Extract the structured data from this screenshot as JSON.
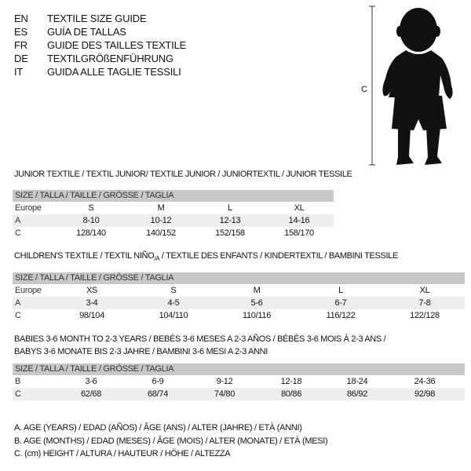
{
  "languages": [
    {
      "code": "EN",
      "title": "TEXTILE SIZE GUIDE"
    },
    {
      "code": "ES",
      "title": "GUÍA DE TALLAS"
    },
    {
      "code": "FR",
      "title": "GUIDE DES TAILLES TEXTILE"
    },
    {
      "code": "DE",
      "title": "TEXTILGRÖßENFÜHRUNG"
    },
    {
      "code": "IT",
      "title": "GUIDA ALLE TAGLIE TESSILI"
    }
  ],
  "figure": {
    "measure_label": "C"
  },
  "size_header": "SIZE / TALLA / TAILLE / GRÖSSE / TAGLIA",
  "junior": {
    "title": "JUNIOR TEXTILE / TEXTIL JUNIOR/ TEXTILE JUNIOR / JUNIORTEXTIL / JUNIOR TESSILE",
    "rows": [
      {
        "label": "Europe",
        "values": [
          "S",
          "M",
          "L",
          "XL"
        ]
      },
      {
        "label": "A",
        "values": [
          "8-10",
          "10-12",
          "12-13",
          "14-16"
        ]
      },
      {
        "label": "C",
        "values": [
          "128/140",
          "140/152",
          "152/158",
          "158/170"
        ]
      }
    ]
  },
  "children": {
    "title_pre": "CHILDREN'S TEXTILE / TEXTIL NIÑO",
    "title_sub": "/A",
    "title_post": " / TEXTILE DES ENFANTS / KINDERTEXTIL / BAMBINI TESSILE",
    "rows": [
      {
        "label": "Europe",
        "values": [
          "XS",
          "S",
          "M",
          "L",
          "XL"
        ]
      },
      {
        "label": "A",
        "values": [
          "3-4",
          "4-5",
          "5-6",
          "6-7",
          "7-8"
        ]
      },
      {
        "label": "C",
        "values": [
          "98/104",
          "104/110",
          "110/116",
          "116/122",
          "122/128"
        ]
      }
    ]
  },
  "babies": {
    "title_line1": "BABIES 3-6 MONTH TO 2-3 YEARS / BEBÉS 3-6 MESES A 2-3 AÑOS / BÉBÉS 3-6 MOIS À 2-3 ANS /",
    "title_line2": "BABYS 3-6 MONATE BIS 2-3 JAHRE / BAMBINI 3-6 MESI A 2-3 ANNI",
    "rows": [
      {
        "label": "B",
        "values": [
          "3-6",
          "6-9",
          "9-12",
          "12-18",
          "18-24",
          "24-36"
        ]
      },
      {
        "label": "C",
        "values": [
          "62/68",
          "68/74",
          "74/80",
          "80/86",
          "86/92",
          "92/98"
        ]
      }
    ]
  },
  "legend": [
    "A. AGE (YEARS) / EDAD (AÑOS) / ÂGE (ANS) / ALTER (JAHRE) / ETÀ (ANNI)",
    "B. AGE (MONTHS) / EDAD (MESES) / ÂGE (MOIS) / ALTER (MONATE) / ETÀ (MESI)",
    "C. (cm) HEIGHT / ALTURA / HAUTEUR / HÖHE / ALTEZZA"
  ]
}
